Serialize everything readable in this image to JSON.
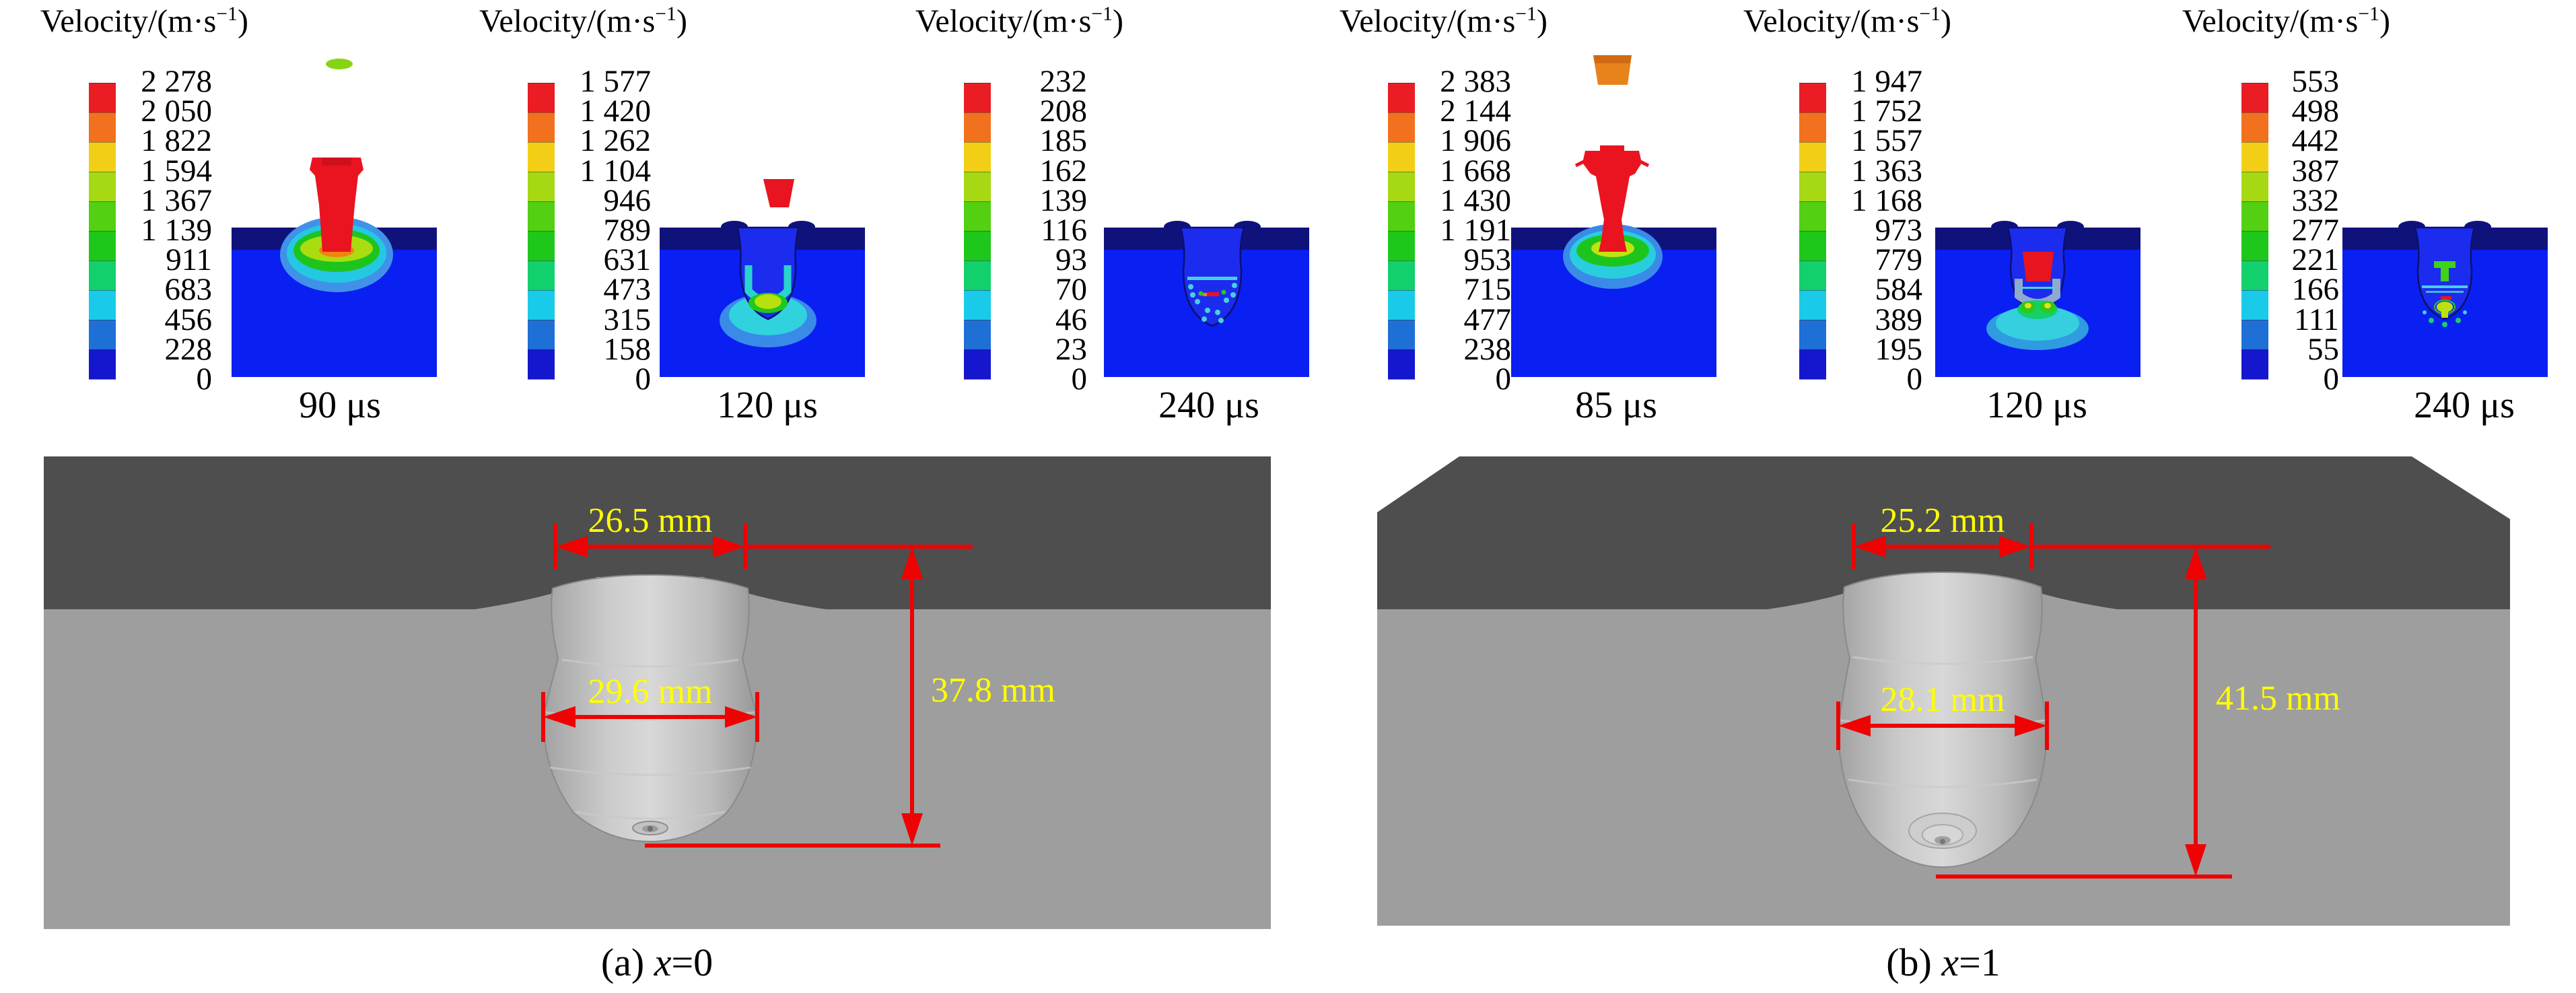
{
  "colorbar_title": {
    "base": "Velocity/(m·s",
    "sup": "−1",
    "close": ")"
  },
  "colorbar_colors": [
    "#ea1c24",
    "#f1711e",
    "#f2cf16",
    "#a6d813",
    "#52d011",
    "#1ec81a",
    "#12d06c",
    "#19cbe8",
    "#1e70d6",
    "#1517cf"
  ],
  "panels": [
    {
      "time": "90 μs",
      "ticks": [
        "2 278",
        "2 050",
        "1 822",
        "1 594",
        "1 367",
        "1 139",
        "911",
        "683",
        "456",
        "228",
        "0"
      ]
    },
    {
      "time": "120 μs",
      "ticks": [
        "1 577",
        "1 420",
        "1 262",
        "1 104",
        "946",
        "789",
        "631",
        "473",
        "315",
        "158",
        "0"
      ]
    },
    {
      "time": "240 μs",
      "ticks": [
        "232",
        "208",
        "185",
        "162",
        "139",
        "116",
        "93",
        "70",
        "46",
        "23",
        "0"
      ]
    },
    {
      "time": "85 μs",
      "ticks": [
        "2 383",
        "2 144",
        "1 906",
        "1 668",
        "1 430",
        "1 191",
        "953",
        "715",
        "477",
        "238",
        "0"
      ]
    },
    {
      "time": "120 μs",
      "ticks": [
        "1 947",
        "1 752",
        "1 557",
        "1 363",
        "1 168",
        "973",
        "779",
        "584",
        "389",
        "195",
        "0"
      ]
    },
    {
      "time": "240 μs",
      "ticks": [
        "553",
        "498",
        "442",
        "387",
        "332",
        "277",
        "221",
        "166",
        "111",
        "55",
        "0"
      ]
    }
  ],
  "craters": [
    {
      "caption": {
        "prefix": "(a) ",
        "variable": "x",
        "value": "=0"
      },
      "entrance_width": "26.5 mm",
      "cavity_width": "29.6 mm",
      "depth": "37.8 mm"
    },
    {
      "caption": {
        "prefix": "(b) ",
        "variable": "x",
        "value": "=1"
      },
      "entrance_width": "25.2 mm",
      "cavity_width": "28.1 mm",
      "depth": "41.5 mm"
    }
  ],
  "colors": {
    "target_blue": "#0a1ff2",
    "surface_navy": "#10127c",
    "crater_blue": "#1c2cee",
    "annotation_red": "#ee0202",
    "label_yellow": "#ffff00",
    "ground_dark": "#4e4e4e",
    "ground_light": "#9e9e9e"
  }
}
